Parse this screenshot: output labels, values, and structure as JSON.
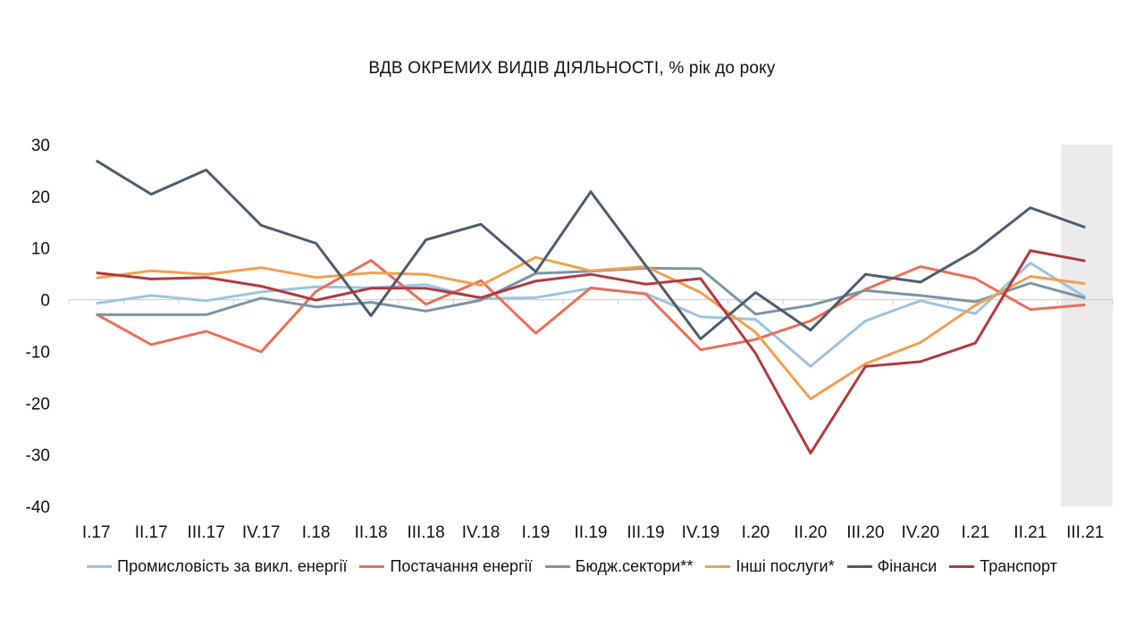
{
  "chart_data": {
    "type": "line",
    "title": "ВДВ ОКРЕМИХ ВИДІВ ДІЯЛЬНОСТІ, % рік до року",
    "categories": [
      "I.17",
      "II.17",
      "III.17",
      "IV.17",
      "I.18",
      "II.18",
      "III.18",
      "IV.18",
      "I.19",
      "II.19",
      "III.19",
      "IV.19",
      "I.20",
      "II.20",
      "III.20",
      "IV.20",
      "I.21",
      "II.21",
      "III.21"
    ],
    "ylim": [
      -40,
      30
    ],
    "yticks": [
      30,
      20,
      10,
      0,
      -10,
      -20,
      -30,
      -40
    ],
    "highlight_category": "III.21",
    "grid": false,
    "legend_position": "bottom",
    "series": [
      {
        "name": "Промисловість за викл. енергії",
        "color": "#9dc3e0",
        "values": [
          -0.7,
          0.8,
          -0.2,
          1.5,
          2.5,
          2.3,
          2.9,
          0.2,
          0.4,
          2.2,
          1.2,
          -3.3,
          -3.8,
          -12.9,
          -4.1,
          -0.2,
          -2.7,
          7.1,
          0.5
        ]
      },
      {
        "name": "Постачання енергії",
        "color": "#e8705a",
        "values": [
          -2.8,
          -8.7,
          -6.1,
          -10.1,
          1.6,
          7.6,
          -0.9,
          3.7,
          -6.5,
          2.3,
          1.1,
          -9.7,
          -7.7,
          -4.1,
          2.0,
          6.4,
          4.1,
          -1.9,
          -1.0
        ]
      },
      {
        "name": "Бюдж.сектори**",
        "color": "#7d93a6",
        "values": [
          -2.9,
          -2.9,
          -2.9,
          0.3,
          -1.4,
          -0.5,
          -2.2,
          -0.1,
          5.1,
          5.5,
          6.1,
          6.0,
          -2.8,
          -1.1,
          1.8,
          0.8,
          -0.4,
          3.2,
          0.3
        ]
      },
      {
        "name": "Інші послуги*",
        "color": "#f0a050",
        "values": [
          4.2,
          5.6,
          4.9,
          6.2,
          4.3,
          5.2,
          4.9,
          2.8,
          8.2,
          5.6,
          6.4,
          1.4,
          -6.3,
          -19.2,
          -12.4,
          -8.3,
          -1.1,
          4.5,
          3.1
        ]
      },
      {
        "name": "Фінанси",
        "color": "#4d5c70",
        "values": [
          26.9,
          20.4,
          25.1,
          14.4,
          10.9,
          -3.1,
          11.6,
          14.6,
          5.4,
          20.9,
          6.6,
          -7.6,
          1.4,
          -5.9,
          4.9,
          3.4,
          9.5,
          17.8,
          14.0
        ]
      },
      {
        "name": "Транспорт",
        "color": "#b03a3e",
        "values": [
          5.2,
          4.0,
          4.3,
          2.6,
          -0.1,
          2.2,
          2.2,
          0.4,
          3.6,
          4.9,
          3.0,
          4.1,
          -10.4,
          -29.7,
          -12.9,
          -12.0,
          -8.4,
          9.5,
          7.5
        ]
      }
    ]
  }
}
